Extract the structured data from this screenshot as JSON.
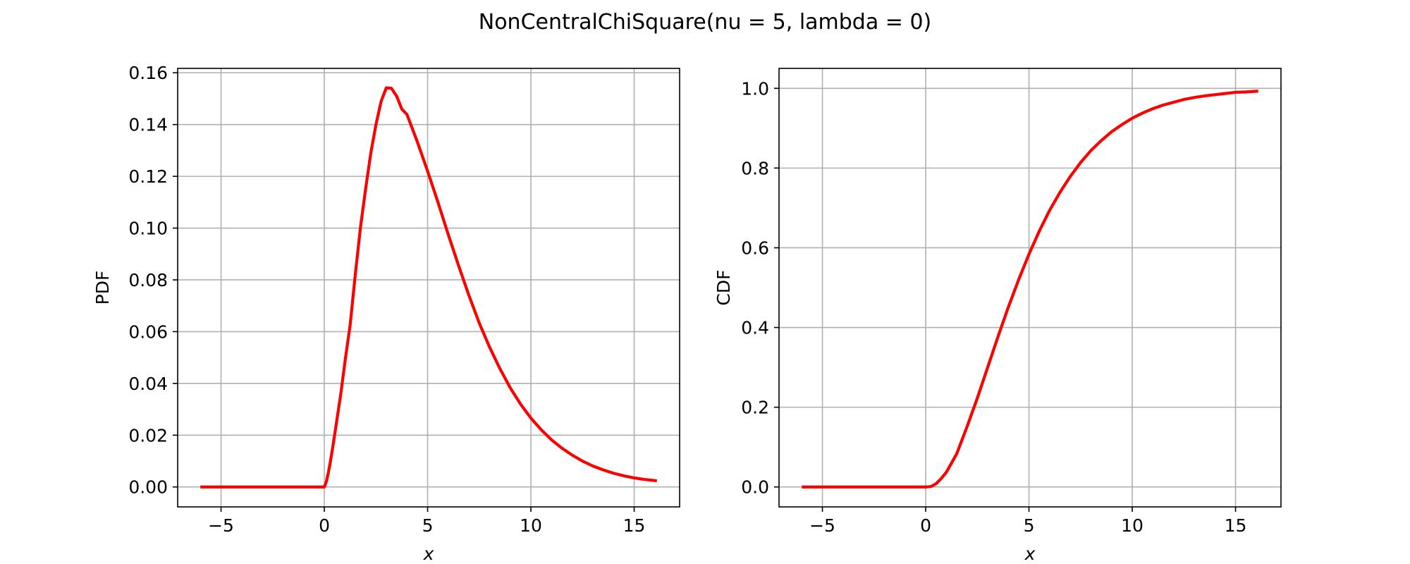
{
  "figure": {
    "title": "NonCentralChiSquare(nu = 5, lambda = 0)",
    "line_color": "#ff0000"
  },
  "chart_data": [
    {
      "type": "line",
      "title": "",
      "xlabel": "x",
      "ylabel": "PDF",
      "xlim": [
        -7.1,
        17.2
      ],
      "ylim": [
        -0.0077,
        0.1617
      ],
      "xticks": [
        -5,
        0,
        5,
        10,
        15
      ],
      "xtick_labels": [
        "−5",
        "0",
        "5",
        "10",
        "15"
      ],
      "yticks": [
        0,
        0.02,
        0.04,
        0.06,
        0.08,
        0.1,
        0.12,
        0.14,
        0.16
      ],
      "ytick_labels": [
        "0.00",
        "0.02",
        "0.04",
        "0.06",
        "0.08",
        "0.10",
        "0.12",
        "0.14",
        "0.16"
      ],
      "grid": true,
      "series": [
        {
          "x": [
            -6.0,
            -4.0,
            -2.0,
            -0.2,
            0.0,
            0.1,
            0.2,
            0.3,
            0.4,
            0.5,
            0.6,
            0.8,
            1.0,
            1.25,
            1.5,
            1.75,
            2.0,
            2.25,
            2.5,
            2.75,
            3.0,
            3.25,
            3.5,
            3.75,
            4.0,
            4.5,
            5.0,
            5.5,
            6.0,
            6.5,
            7.0,
            7.5,
            8.0,
            8.5,
            9.0,
            9.5,
            10.0,
            10.5,
            11.0,
            11.5,
            12.0,
            12.5,
            13.0,
            13.5,
            14.0,
            14.5,
            15.0,
            15.5,
            16.1
          ],
          "y": [
            0,
            0,
            0,
            0,
            0.0,
            0.0021,
            0.0057,
            0.0101,
            0.015,
            0.0202,
            0.0255,
            0.0361,
            0.0484,
            0.0626,
            0.0821,
            0.1003,
            0.1152,
            0.129,
            0.14,
            0.149,
            0.1542,
            0.154,
            0.151,
            0.146,
            0.1439,
            0.1334,
            0.122,
            0.11,
            0.0975,
            0.0855,
            0.074,
            0.0633,
            0.054,
            0.0457,
            0.0383,
            0.032,
            0.0266,
            0.0221,
            0.0182,
            0.015,
            0.0123,
            0.01,
            0.0081,
            0.0066,
            0.0053,
            0.0043,
            0.0035,
            0.0029,
            0.0024
          ]
        }
      ]
    },
    {
      "type": "line",
      "title": "",
      "xlabel": "x",
      "ylabel": "CDF",
      "xlim": [
        -7.1,
        17.2
      ],
      "ylim": [
        -0.05,
        1.05
      ],
      "xticks": [
        -5,
        0,
        5,
        10,
        15
      ],
      "xtick_labels": [
        "−5",
        "0",
        "5",
        "10",
        "15"
      ],
      "yticks": [
        0,
        0.2,
        0.4,
        0.6,
        0.8,
        1.0
      ],
      "ytick_labels": [
        "0.0",
        "0.2",
        "0.4",
        "0.6",
        "0.8",
        "1.0"
      ],
      "grid": true,
      "series": [
        {
          "x": [
            -6.0,
            -4.0,
            -2.0,
            0.0,
            0.25,
            0.5,
            0.75,
            1.0,
            1.5,
            2.0,
            2.5,
            3.0,
            3.5,
            4.0,
            4.5,
            5.0,
            5.5,
            6.0,
            6.5,
            7.0,
            7.5,
            8.0,
            8.5,
            9.0,
            9.5,
            10.0,
            10.5,
            11.0,
            11.5,
            12.0,
            12.5,
            13.0,
            13.5,
            14.0,
            14.5,
            15.0,
            15.5,
            16.1
          ],
          "y": [
            0,
            0,
            0,
            0,
            0.001,
            0.008,
            0.021,
            0.037,
            0.083,
            0.151,
            0.223,
            0.3,
            0.377,
            0.451,
            0.52,
            0.584,
            0.642,
            0.694,
            0.739,
            0.779,
            0.814,
            0.844,
            0.869,
            0.891,
            0.909,
            0.925,
            0.938,
            0.949,
            0.958,
            0.965,
            0.972,
            0.977,
            0.981,
            0.984,
            0.987,
            0.99,
            0.991,
            0.993
          ]
        }
      ]
    }
  ]
}
